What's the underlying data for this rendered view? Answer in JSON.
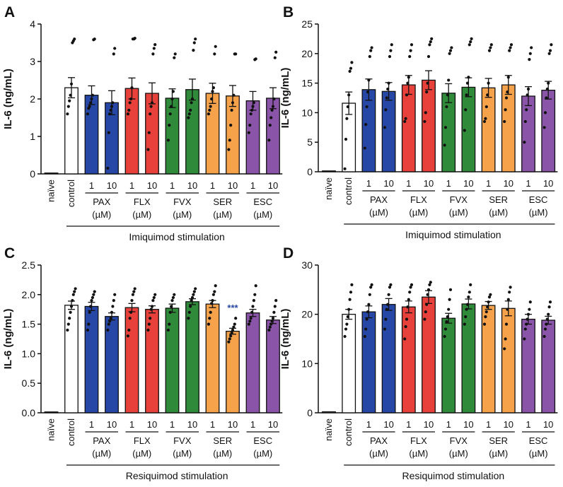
{
  "colors": {
    "naive": "#ffffff",
    "control": "#ffffff",
    "PAX": "#2747a6",
    "FLX": "#e8403a",
    "FVX": "#2f8a3a",
    "SER": "#f5a24a",
    "ESC": "#8a55a8",
    "significance": "#2747a6"
  },
  "chart_data": [
    {
      "panel": "A",
      "type": "bar",
      "title": "",
      "ylabel": "IL-6 (ng/mL)",
      "ylim": [
        0,
        4
      ],
      "yticks": [
        0,
        1,
        2,
        3,
        4
      ],
      "categories": [
        "naïve",
        "control",
        "PAX 1",
        "PAX 10",
        "FLX 1",
        "FLX 10",
        "FVX 1",
        "FVX 10",
        "SER 1",
        "SER 10",
        "ESC 1",
        "ESC 10"
      ],
      "values": [
        0.02,
        2.3,
        2.1,
        1.9,
        2.28,
        2.15,
        2.02,
        2.25,
        2.15,
        2.08,
        1.95,
        2.02
      ],
      "errors": [
        0.0,
        0.27,
        0.25,
        0.32,
        0.28,
        0.28,
        0.25,
        0.28,
        0.27,
        0.28,
        0.25,
        0.28
      ],
      "points": [
        [],
        [
          1.6,
          1.8,
          1.95,
          2.1,
          2.4,
          3.5,
          3.55,
          3.6
        ],
        [
          1.6,
          1.75,
          1.8,
          1.9,
          2.0,
          2.1,
          3.58,
          3.6
        ],
        [
          0.15,
          1.1,
          1.6,
          1.7,
          1.8,
          1.9,
          3.2,
          3.35
        ],
        [
          1.6,
          1.7,
          1.9,
          2.0,
          2.3,
          3.6,
          3.6,
          3.62
        ],
        [
          0.65,
          1.1,
          1.6,
          1.8,
          1.9,
          3.2,
          3.35,
          3.45
        ],
        [
          0.9,
          1.3,
          1.6,
          1.8,
          2.0,
          2.2,
          3.1,
          3.2
        ],
        [
          1.5,
          1.6,
          1.7,
          1.9,
          2.0,
          3.3,
          3.5,
          3.6
        ],
        [
          1.6,
          1.7,
          1.8,
          2.0,
          2.2,
          2.3,
          3.2,
          3.4
        ],
        [
          0.65,
          0.9,
          1.3,
          1.7,
          1.9,
          2.1,
          3.2,
          3.2
        ],
        [
          1.1,
          1.3,
          1.6,
          1.7,
          1.8,
          1.9,
          3.05,
          3.07
        ],
        [
          0.9,
          1.3,
          1.5,
          1.7,
          1.8,
          2.0,
          3.1,
          3.25
        ]
      ],
      "groups": [
        "PAX\n(µM)",
        "FLX\n(µM)",
        "FVX\n(µM)",
        "SER\n(µM)",
        "ESC\n(µM)"
      ],
      "doses": [
        "1",
        "10"
      ],
      "stimulation": "Imiquimod stimulation",
      "significance": []
    },
    {
      "panel": "B",
      "type": "bar",
      "title": "",
      "ylabel": "IL-6 (ng/mL)",
      "ylim": [
        0,
        25
      ],
      "yticks": [
        0,
        5,
        10,
        15,
        20,
        25
      ],
      "categories": [
        "naïve",
        "control",
        "PAX 1",
        "PAX 10",
        "FLX 1",
        "FLX 10",
        "FVX 1",
        "FVX 10",
        "SER 1",
        "SER 10",
        "ESC 1",
        "ESC 10"
      ],
      "values": [
        0.1,
        11.6,
        13.9,
        13.6,
        14.7,
        15.5,
        13.3,
        14.3,
        14.2,
        14.7,
        12.8,
        13.8
      ],
      "errors": [
        0.0,
        1.9,
        1.8,
        1.5,
        1.6,
        1.6,
        1.6,
        1.6,
        1.6,
        1.6,
        1.6,
        1.5
      ],
      "points": [
        [],
        [
          0.5,
          5.5,
          9.0,
          11.0,
          13.0,
          17.0,
          17.5,
          18.5
        ],
        [
          4.0,
          8.0,
          11.0,
          13.5,
          15.5,
          19.5,
          20.5,
          21.0
        ],
        [
          7.5,
          10.5,
          12.5,
          14.0,
          15.0,
          19.5,
          20.5,
          21.5
        ],
        [
          8.5,
          9.0,
          13.0,
          15.0,
          16.0,
          19.5,
          20.5,
          21.5
        ],
        [
          8.5,
          10.0,
          13.5,
          15.0,
          19.5,
          21.5,
          22.0,
          22.5
        ],
        [
          4.5,
          7.5,
          11.0,
          13.0,
          15.5,
          20.0,
          20.5,
          21.0
        ],
        [
          7.0,
          10.5,
          13.0,
          15.0,
          16.0,
          21.5,
          22.0,
          22.5
        ],
        [
          8.5,
          9.0,
          11.0,
          13.0,
          15.0,
          20.5,
          21.0,
          21.5
        ],
        [
          8.5,
          10.5,
          12.5,
          13.5,
          16.0,
          20.5,
          21.0,
          21.5
        ],
        [
          5.0,
          8.5,
          10.5,
          13.0,
          14.0,
          19.0,
          20.0,
          21.0
        ],
        [
          7.5,
          10.0,
          12.5,
          14.0,
          15.0,
          20.0,
          20.5,
          21.5
        ]
      ],
      "groups": [
        "PAX\n(µM)",
        "FLX\n(µM)",
        "FVX\n(µM)",
        "SER\n(µM)",
        "ESC\n(µM)"
      ],
      "doses": [
        "1",
        "10"
      ],
      "stimulation": "Imiquimod stimulation",
      "significance": []
    },
    {
      "panel": "C",
      "type": "bar",
      "title": "",
      "ylabel": "IL-6 (ng/mL)",
      "ylim": [
        0,
        2.5
      ],
      "yticks": [
        "0.0",
        "0.5",
        "1.0",
        "1.5",
        "2.0",
        "2.5"
      ],
      "categories": [
        "naïve",
        "control",
        "PAX 1",
        "PAX 10",
        "FLX 1",
        "FLX 10",
        "FVX 1",
        "FVX 10",
        "SER 1",
        "SER 10",
        "ESC 1",
        "ESC 10"
      ],
      "values": [
        0.01,
        1.82,
        1.8,
        1.63,
        1.78,
        1.75,
        1.77,
        1.88,
        1.84,
        1.38,
        1.69,
        1.57
      ],
      "errors": [
        0.0,
        0.07,
        0.07,
        0.06,
        0.07,
        0.06,
        0.07,
        0.05,
        0.06,
        0.05,
        0.06,
        0.06
      ],
      "points": [
        [],
        [
          1.4,
          1.5,
          1.6,
          1.7,
          1.8,
          1.9,
          2.0,
          2.05,
          2.1
        ],
        [
          1.4,
          1.5,
          1.7,
          1.8,
          1.9,
          1.95,
          2.0,
          2.05
        ],
        [
          1.4,
          1.5,
          1.55,
          1.6,
          1.7,
          1.8,
          1.9,
          2.0
        ],
        [
          1.3,
          1.4,
          1.6,
          1.7,
          1.9,
          2.0,
          2.05,
          2.1
        ],
        [
          1.4,
          1.5,
          1.6,
          1.75,
          1.8,
          1.9,
          1.95,
          2.0
        ],
        [
          1.4,
          1.5,
          1.7,
          1.8,
          1.9,
          1.95,
          2.0
        ],
        [
          1.6,
          1.7,
          1.8,
          1.9,
          1.95,
          2.0,
          2.05,
          2.1
        ],
        [
          1.5,
          1.6,
          1.7,
          1.85,
          1.9,
          2.0,
          2.05,
          2.15
        ],
        [
          1.2,
          1.25,
          1.3,
          1.35,
          1.4,
          1.45,
          1.5,
          1.6
        ],
        [
          1.5,
          1.55,
          1.6,
          1.7,
          1.8,
          1.9,
          2.0,
          2.15
        ],
        [
          1.4,
          1.45,
          1.5,
          1.55,
          1.6,
          1.7,
          1.8,
          1.9
        ]
      ],
      "groups": [
        "PAX\n(µM)",
        "FLX\n(µM)",
        "FVX\n(µM)",
        "SER\n(µM)",
        "ESC\n(µM)"
      ],
      "doses": [
        "1",
        "10"
      ],
      "stimulation": "Resiquimod stimulation",
      "significance": [
        {
          "category": "SER 10",
          "label": "***"
        }
      ]
    },
    {
      "panel": "D",
      "type": "bar",
      "title": "",
      "ylabel": "IL-6 (ng/mL)",
      "ylim": [
        0,
        30
      ],
      "yticks": [
        0,
        10,
        20,
        30
      ],
      "categories": [
        "naïve",
        "control",
        "PAX 1",
        "PAX 10",
        "FLX 1",
        "FLX 10",
        "FVX 1",
        "FVX 10",
        "SER 1",
        "SER 10",
        "ESC 1",
        "ESC 10"
      ],
      "values": [
        0.2,
        20.0,
        20.5,
        22.0,
        21.5,
        23.5,
        19.2,
        22.1,
        21.8,
        21.2,
        19.0,
        18.8
      ],
      "errors": [
        0.0,
        1.0,
        1.2,
        1.2,
        1.2,
        1.3,
        1.0,
        1.0,
        0.8,
        1.5,
        1.0,
        0.8
      ],
      "points": [
        [],
        [
          15.5,
          17.0,
          18.0,
          19.5,
          21.0,
          23.0,
          24.5,
          26.0
        ],
        [
          15.5,
          17.0,
          19.0,
          20.5,
          22.0,
          24.0,
          25.5,
          26.0
        ],
        [
          17.0,
          19.0,
          21.0,
          22.0,
          24.0,
          25.5,
          26.0
        ],
        [
          15.0,
          17.5,
          19.0,
          21.5,
          23.0,
          24.5,
          25.5,
          26.0
        ],
        [
          19.0,
          20.5,
          22.0,
          24.0,
          25.0,
          26.0,
          26.5
        ],
        [
          15.5,
          17.0,
          18.5,
          19.5,
          21.0,
          23.0,
          25.0
        ],
        [
          18.0,
          19.5,
          21.0,
          22.0,
          23.5,
          24.5,
          26.0
        ],
        [
          18.0,
          19.5,
          20.5,
          21.5,
          22.5,
          23.5,
          24.0
        ],
        [
          13.0,
          15.0,
          18.0,
          21.0,
          23.0,
          24.5,
          25.5
        ],
        [
          15.0,
          17.0,
          18.0,
          19.0,
          20.0,
          21.0,
          22.5
        ],
        [
          15.5,
          17.0,
          18.0,
          19.0,
          20.0,
          21.5,
          22.5
        ]
      ],
      "groups": [
        "PAX\n(µM)",
        "FLX\n(µM)",
        "FVX\n(µM)",
        "SER\n(µM)",
        "ESC\n(µM)"
      ],
      "doses": [
        "1",
        "10"
      ],
      "stimulation": "Resiquimod stimulation",
      "significance": []
    }
  ]
}
